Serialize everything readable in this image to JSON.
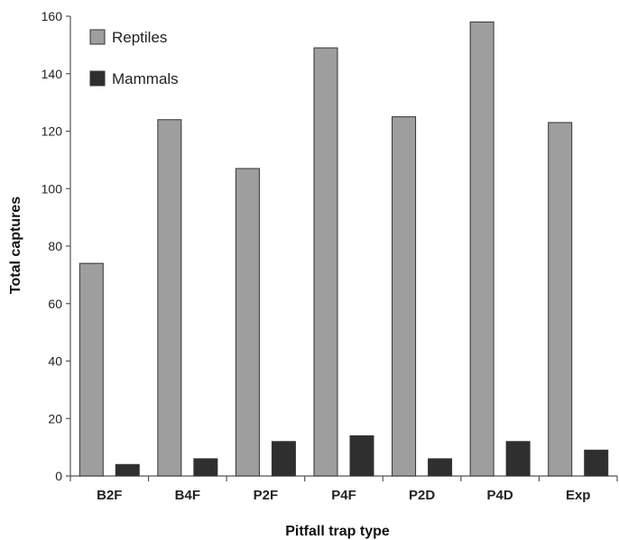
{
  "chart_data": {
    "type": "bar",
    "title": "",
    "xlabel": "Pitfall trap type",
    "ylabel": "Total captures",
    "categories": [
      "B2F",
      "B4F",
      "P2F",
      "P4F",
      "P2D",
      "P4D",
      "Exp"
    ],
    "series": [
      {
        "name": "Reptiles",
        "values": [
          74,
          124,
          107,
          149,
          125,
          158,
          123
        ],
        "color": "#9e9e9e"
      },
      {
        "name": "Mammals",
        "values": [
          4,
          6,
          12,
          14,
          6,
          12,
          9
        ],
        "color": "#2f2f2f"
      }
    ],
    "ylim": [
      0,
      160
    ],
    "yticks": [
      0,
      20,
      40,
      60,
      80,
      100,
      120,
      140,
      160
    ],
    "grid": false,
    "legend_position": "top-left"
  }
}
